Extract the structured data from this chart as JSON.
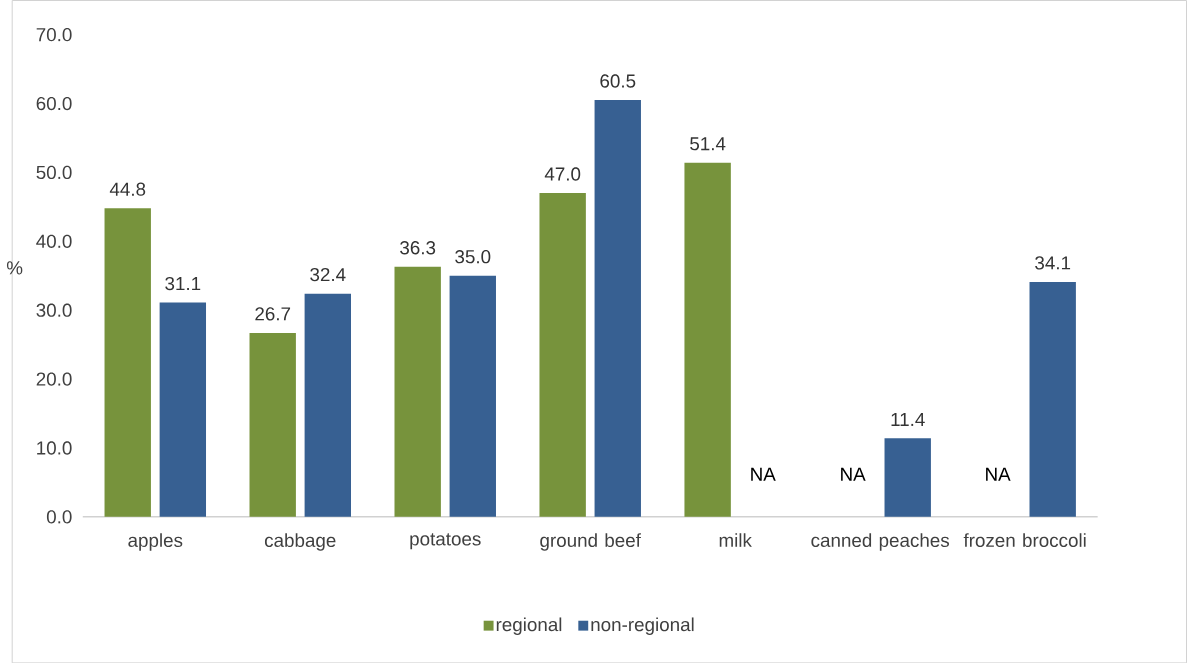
{
  "chart_data": {
    "type": "bar",
    "ylabel": "%",
    "categories": [
      "apples",
      "cabbage",
      "potatoes",
      "ground beef",
      "milk",
      "canned peaches",
      "frozen broccoli"
    ],
    "series": [
      {
        "name": "regional",
        "color": "#77933c",
        "values": [
          44.8,
          26.7,
          36.3,
          47.0,
          51.4,
          null,
          null
        ],
        "value_labels": [
          "44.8",
          "26.7",
          "36.3",
          "47.0",
          "51.4",
          "NA",
          "NA"
        ]
      },
      {
        "name": "non-regional",
        "color": "#376092",
        "values": [
          31.1,
          32.4,
          35.0,
          60.5,
          null,
          11.4,
          34.1
        ],
        "value_labels": [
          "31.1",
          "32.4",
          "35.0",
          "60.5",
          "NA",
          "11.4",
          "34.1"
        ]
      }
    ],
    "ylim": [
      0,
      70
    ],
    "yticks": [
      {
        "value": 0,
        "label": "0.0"
      },
      {
        "value": 10,
        "label": "10.0"
      },
      {
        "value": 20,
        "label": "20.0"
      },
      {
        "value": 30,
        "label": "30.0"
      },
      {
        "value": 40,
        "label": "40.0"
      },
      {
        "value": 50,
        "label": "50.0"
      },
      {
        "value": 60,
        "label": "60.0"
      },
      {
        "value": 70,
        "label": "70.0"
      }
    ],
    "legend": "bottom"
  }
}
